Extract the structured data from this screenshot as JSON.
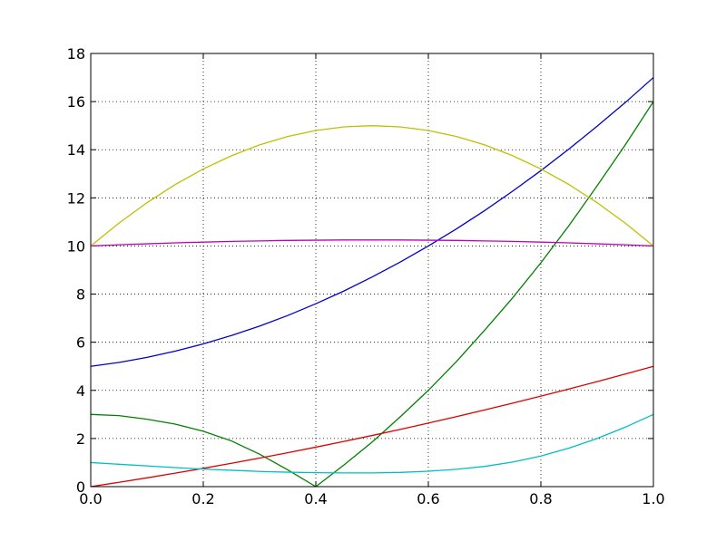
{
  "chart_data": {
    "type": "line",
    "x": [
      0,
      0.05,
      0.1,
      0.15,
      0.2,
      0.25,
      0.3,
      0.35,
      0.4,
      0.45,
      0.5,
      0.55,
      0.6,
      0.65,
      0.7,
      0.75,
      0.8,
      0.85,
      0.9,
      0.95,
      1
    ],
    "series": [
      {
        "color": "#0000cc",
        "values": [
          5,
          5.16,
          5.37,
          5.63,
          5.93,
          6.28,
          6.67,
          7.11,
          7.6,
          8.13,
          8.71,
          9.33,
          10.0,
          10.71,
          11.47,
          12.28,
          13.13,
          14.03,
          14.98,
          15.96,
          17
        ]
      },
      {
        "color": "#008000",
        "values": [
          3,
          2.95,
          2.8,
          2.6,
          2.3,
          1.9,
          1.35,
          0.7,
          0,
          0.9,
          1.85,
          2.9,
          4.0,
          5.2,
          6.5,
          7.85,
          9.3,
          10.85,
          12.5,
          14.2,
          16
        ]
      },
      {
        "color": "#dd0000",
        "values": [
          0,
          0.179,
          0.365,
          0.559,
          0.76,
          0.969,
          1.185,
          1.409,
          1.64,
          1.879,
          2.125,
          2.379,
          2.64,
          2.909,
          3.185,
          3.469,
          3.76,
          4.059,
          4.365,
          4.679,
          5
        ]
      },
      {
        "color": "#00bfbf",
        "values": [
          1,
          0.93,
          0.86,
          0.79,
          0.73,
          0.68,
          0.63,
          0.6,
          0.58,
          0.57,
          0.57,
          0.59,
          0.64,
          0.72,
          0.84,
          1.02,
          1.27,
          1.6,
          2.0,
          2.47,
          3
        ]
      },
      {
        "color": "#bf00bf",
        "values": [
          10,
          10.05,
          10.09,
          10.13,
          10.16,
          10.19,
          10.21,
          10.23,
          10.24,
          10.25,
          10.25,
          10.25,
          10.24,
          10.23,
          10.21,
          10.19,
          10.16,
          10.13,
          10.09,
          10.05,
          10
        ]
      },
      {
        "color": "#bfbf00",
        "values": [
          10,
          10.95,
          11.8,
          12.55,
          13.2,
          13.75,
          14.2,
          14.55,
          14.8,
          14.95,
          15,
          14.95,
          14.8,
          14.55,
          14.2,
          13.75,
          13.2,
          12.55,
          11.8,
          10.95,
          10
        ]
      }
    ],
    "xlim": [
      0,
      1
    ],
    "xticks": [
      {
        "value": 0,
        "label": "0.0"
      },
      {
        "value": 0.2,
        "label": "0.2"
      },
      {
        "value": 0.4,
        "label": "0.4"
      },
      {
        "value": 0.6,
        "label": "0.6"
      },
      {
        "value": 0.8,
        "label": "0.8"
      },
      {
        "value": 1,
        "label": "1.0"
      }
    ],
    "ylim": [
      0,
      18
    ],
    "yticks": [
      0,
      2,
      4,
      6,
      8,
      10,
      12,
      14,
      16,
      18
    ],
    "grid": true
  }
}
